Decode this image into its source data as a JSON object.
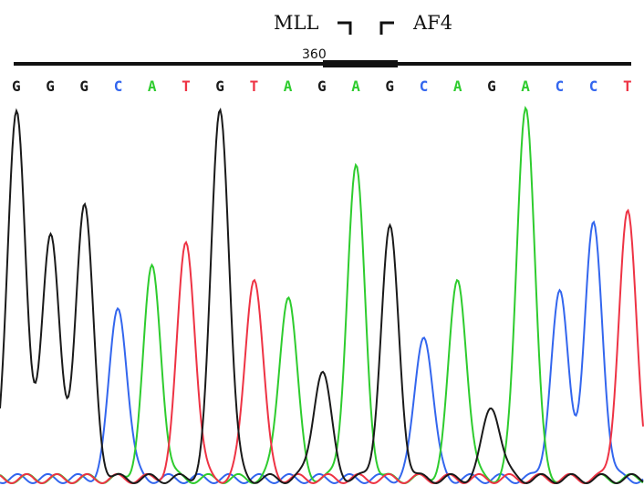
{
  "header": {
    "left_gene": "MLL",
    "right_gene": "AF4",
    "position_label": "360"
  },
  "sequence": {
    "bases": [
      "G",
      "G",
      "G",
      "C",
      "A",
      "T",
      "G",
      "T",
      "A",
      "G",
      "A",
      "G",
      "C",
      "A",
      "G",
      "A",
      "C",
      "C",
      "T"
    ],
    "colors": {
      "G": "#1a1a1a",
      "A": "#2ecc2e",
      "C": "#3366ee",
      "T": "#ee3344"
    }
  },
  "chromatogram": {
    "peaks": [
      {
        "base": "G",
        "height": 0.97
      },
      {
        "base": "G",
        "height": 0.64
      },
      {
        "base": "G",
        "height": 0.71
      },
      {
        "base": "C",
        "height": 0.45
      },
      {
        "base": "A",
        "height": 0.55
      },
      {
        "base": "T",
        "height": 0.62
      },
      {
        "base": "G",
        "height": 0.97
      },
      {
        "base": "T",
        "height": 0.53
      },
      {
        "base": "A",
        "height": 0.48
      },
      {
        "base": "G",
        "height": 0.28
      },
      {
        "base": "A",
        "height": 0.81
      },
      {
        "base": "G",
        "height": 0.65
      },
      {
        "base": "C",
        "height": 0.38
      },
      {
        "base": "A",
        "height": 0.52
      },
      {
        "base": "G",
        "height": 0.19
      },
      {
        "base": "A",
        "height": 0.98
      },
      {
        "base": "C",
        "height": 0.48
      },
      {
        "base": "C",
        "height": 0.66
      },
      {
        "base": "T",
        "height": 0.69
      }
    ]
  }
}
